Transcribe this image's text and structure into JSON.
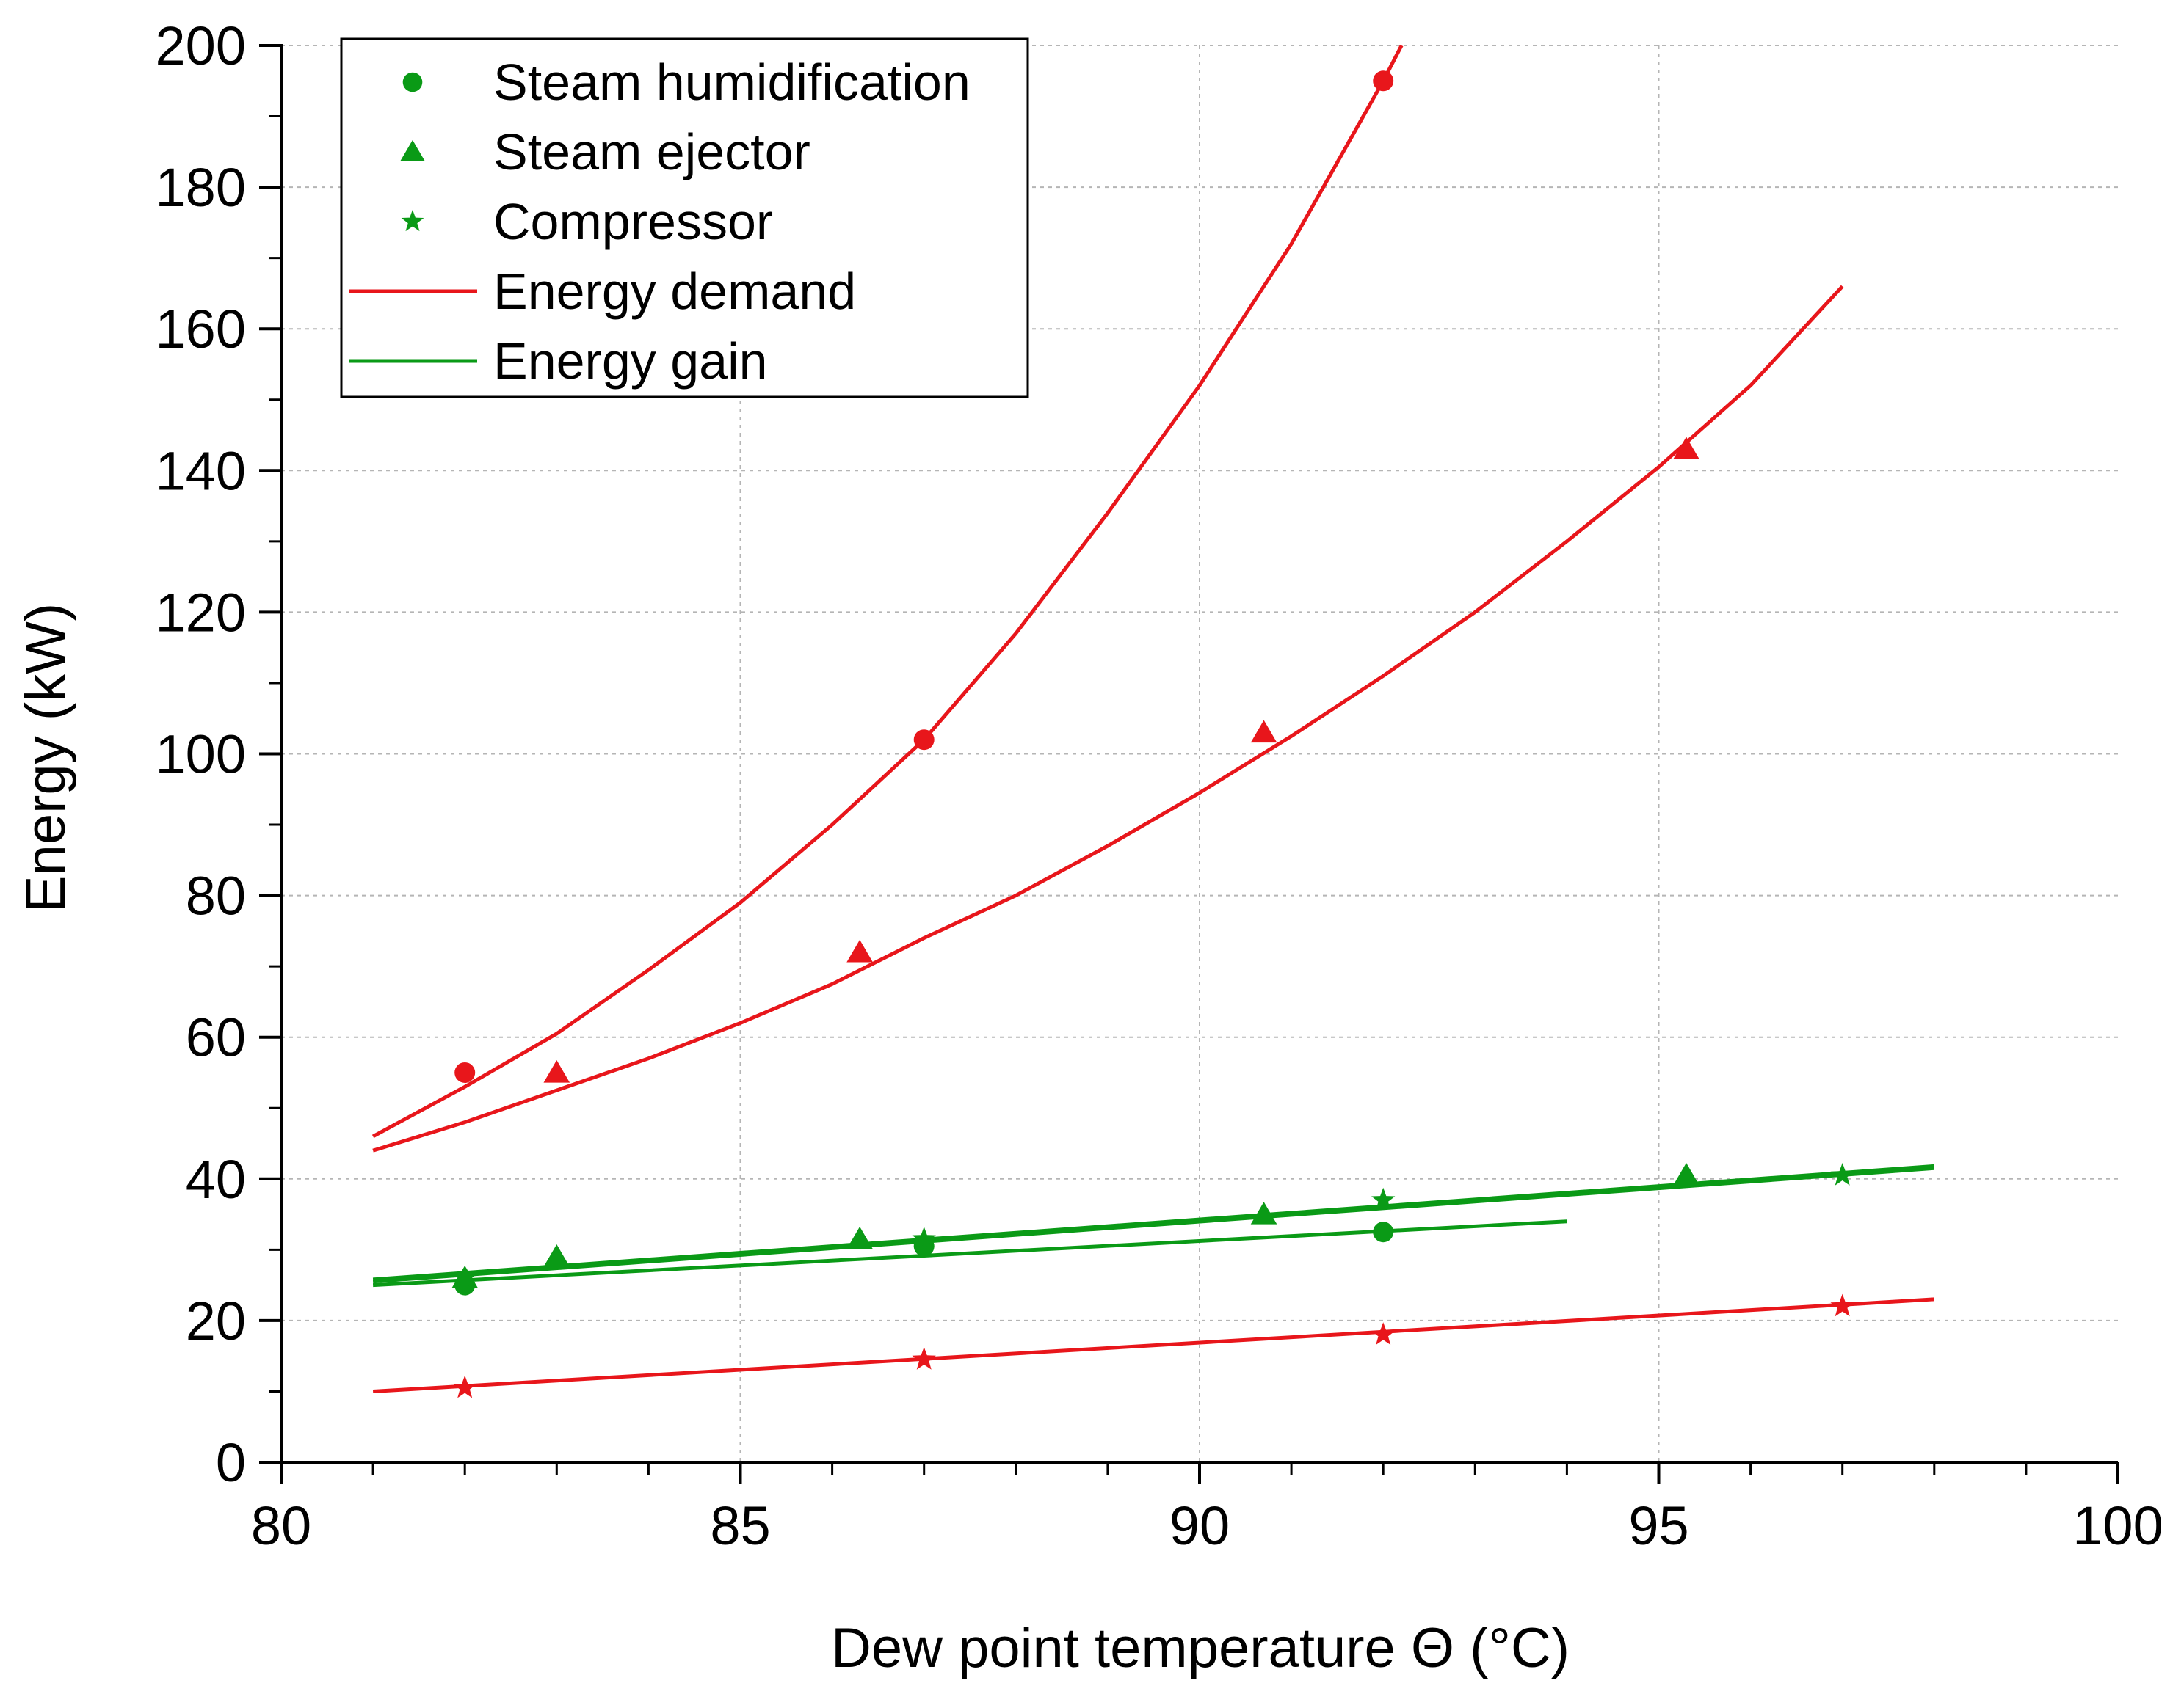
{
  "chart_data": {
    "type": "scatter",
    "title": "",
    "xlabel": "Dew point temperature Θ (°C)",
    "ylabel": "Energy (kW)",
    "xlim": [
      80,
      100
    ],
    "ylim": [
      0,
      200
    ],
    "x_major_ticks": [
      80,
      85,
      90,
      95,
      100
    ],
    "x_tick_labels": [
      "80",
      "85",
      "90",
      "95",
      "100"
    ],
    "y_major_ticks": [
      0,
      20,
      40,
      60,
      80,
      100,
      120,
      140,
      160,
      180,
      200
    ],
    "y_tick_labels": [
      "0",
      "20",
      "40",
      "60",
      "80",
      "100",
      "120",
      "140",
      "160",
      "180",
      "200"
    ],
    "grid": true,
    "colors": {
      "demand": "#e8161b",
      "gain": "#0a9a16"
    },
    "legend": {
      "position": "top-left",
      "entries": [
        {
          "label": "Steam humidification",
          "marker": "circle"
        },
        {
          "label": "Steam ejector",
          "marker": "triangle"
        },
        {
          "label": "Compressor",
          "marker": "star"
        },
        {
          "label": "Energy demand",
          "marker": "line",
          "color": "#e8161b"
        },
        {
          "label": "Energy gain",
          "marker": "line",
          "color": "#0a9a16"
        }
      ]
    },
    "series": [
      {
        "name": "Steam humidification – Energy demand",
        "marker": "circle",
        "kind": "demand",
        "x": [
          82,
          87,
          92
        ],
        "y": [
          55,
          102,
          195
        ]
      },
      {
        "name": "Steam ejector – Energy demand",
        "marker": "triangle",
        "kind": "demand",
        "x": [
          83,
          86.3,
          90.7,
          95.3
        ],
        "y": [
          55,
          72,
          103,
          143
        ]
      },
      {
        "name": "Compressor – Energy demand",
        "marker": "star",
        "kind": "demand",
        "x": [
          82,
          87,
          92,
          97
        ],
        "y": [
          10.5,
          14.5,
          18,
          22
        ]
      },
      {
        "name": "Steam humidification – Energy gain",
        "marker": "circle",
        "kind": "gain",
        "x": [
          82,
          87,
          92
        ],
        "y": [
          25,
          30.5,
          32.5
        ]
      },
      {
        "name": "Steam ejector – Energy gain",
        "marker": "triangle",
        "kind": "gain",
        "x": [
          82,
          83,
          86.3,
          90.7,
          95.3
        ],
        "y": [
          26,
          29,
          31.5,
          35,
          40.5
        ]
      },
      {
        "name": "Compressor – Energy gain",
        "marker": "star",
        "kind": "gain",
        "x": [
          82,
          87,
          92,
          97
        ],
        "y": [
          26,
          31.5,
          37,
          40.5
        ]
      }
    ],
    "fit_curves": [
      {
        "name": "Steam humidification demand fit",
        "kind": "demand",
        "x": [
          81,
          82,
          83,
          84,
          85,
          86,
          87,
          88,
          89,
          90,
          91,
          92,
          92.2
        ],
        "y": [
          46,
          53,
          60.5,
          69.5,
          79,
          90,
          102,
          117,
          134,
          152,
          172,
          195,
          200
        ]
      },
      {
        "name": "Steam ejector demand fit",
        "kind": "demand",
        "x": [
          81,
          82,
          83,
          84,
          85,
          86,
          87,
          88,
          89,
          90,
          91,
          92,
          93,
          94,
          95,
          96,
          97
        ],
        "y": [
          44,
          48,
          52.5,
          57,
          62,
          67.5,
          74,
          80,
          87,
          94.5,
          102.5,
          111,
          120,
          130,
          140.5,
          152,
          166
        ]
      },
      {
        "name": "Compressor demand fit",
        "kind": "demand",
        "x": [
          81,
          98
        ],
        "y": [
          10,
          23
        ]
      },
      {
        "name": "Steam humidification gain fit",
        "kind": "gain",
        "x": [
          81,
          94
        ],
        "y": [
          25,
          34
        ]
      },
      {
        "name": "Steam ejector gain fit",
        "kind": "gain",
        "x": [
          81,
          98
        ],
        "y": [
          25.5,
          41.5
        ]
      },
      {
        "name": "Compressor gain fit",
        "kind": "gain",
        "x": [
          81,
          98
        ],
        "y": [
          25.8,
          41.8
        ]
      }
    ]
  }
}
